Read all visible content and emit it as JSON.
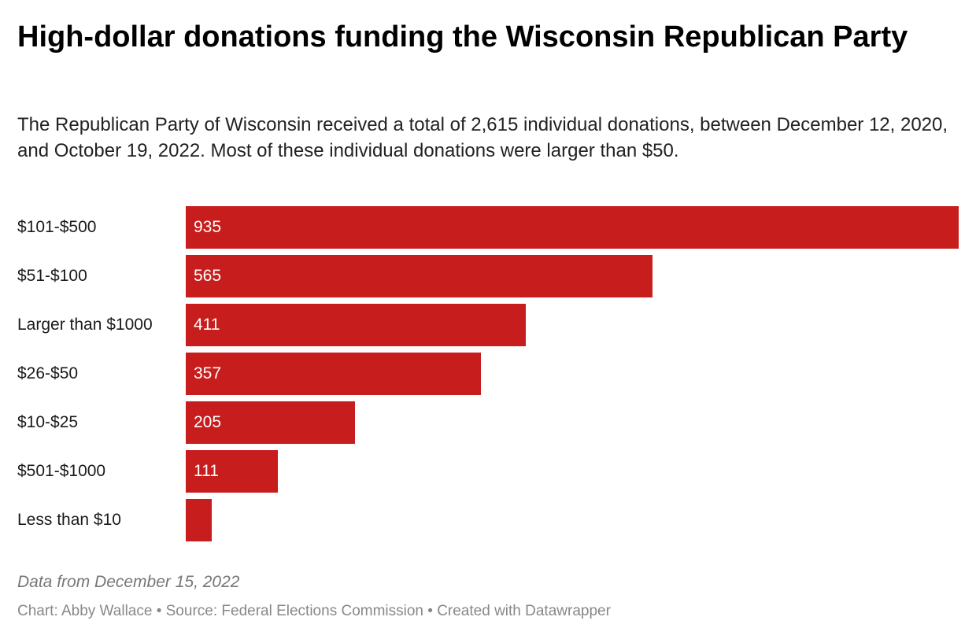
{
  "chart_data": {
    "type": "bar",
    "orientation": "horizontal",
    "title": "High-dollar donations funding the Wisconsin Republican Party",
    "subtitle": "The Republican Party of Wisconsin received a total of 2,615 individual donations, between December 12, 2020, and October 19, 2022. Most of these individual donations were larger than $50.",
    "categories": [
      "$101-$500",
      "$51-$100",
      "Larger than $1000",
      "$26-$50",
      "$10-$25",
      "$501-$1000",
      "Less than $10"
    ],
    "values": [
      935,
      565,
      411,
      357,
      205,
      111,
      31
    ],
    "value_labels": [
      "935",
      "565",
      "411",
      "357",
      "205",
      "111",
      ""
    ],
    "bar_color": "#c71e1d",
    "xlim": [
      0,
      935
    ],
    "grid": false,
    "legend": "none",
    "notes": "Data from December 15, 2022",
    "footer": "Chart: Abby Wallace • Source: Federal Elections Commission • Created with Datawrapper"
  }
}
